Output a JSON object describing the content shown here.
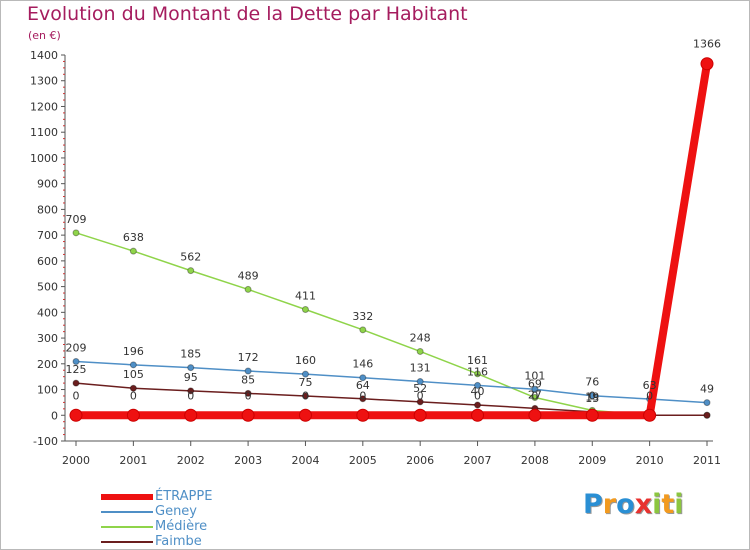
{
  "title": "Evolution du Montant de la Dette par Habitant",
  "unit_label": "(en €)",
  "logo": {
    "text": "Proxiti",
    "letters": [
      {
        "ch": "P",
        "color": "#2a8fd4"
      },
      {
        "ch": "r",
        "color": "#f29a1f"
      },
      {
        "ch": "o",
        "color": "#2a8fd4"
      },
      {
        "ch": "x",
        "color": "#e8322f"
      },
      {
        "ch": "i",
        "color": "#8cc63f"
      },
      {
        "ch": "t",
        "color": "#f29a1f"
      },
      {
        "ch": "i",
        "color": "#8cc63f"
      }
    ]
  },
  "chart_data": {
    "type": "line",
    "x": [
      "2000",
      "2001",
      "2002",
      "2003",
      "2004",
      "2005",
      "2006",
      "2007",
      "2008",
      "2009",
      "2010",
      "2011"
    ],
    "ylim": [
      -100,
      1400
    ],
    "yticks": [
      -100,
      0,
      100,
      200,
      300,
      400,
      500,
      600,
      700,
      800,
      900,
      1000,
      1100,
      1200,
      1300,
      1400
    ],
    "grid": false,
    "legend_position": "bottom-left",
    "series": [
      {
        "name": "ÉTRAPPE",
        "color": "#ee1111",
        "values": [
          0,
          0,
          0,
          0,
          0,
          0,
          0,
          0,
          0,
          0,
          0,
          1366
        ],
        "labels": [
          "0",
          "0",
          "0",
          "0",
          "0",
          "0",
          "0",
          "0",
          "0",
          "0",
          "0",
          "1366"
        ]
      },
      {
        "name": "Geney",
        "color": "#4f8fc6",
        "values": [
          209,
          196,
          185,
          172,
          160,
          146,
          131,
          116,
          101,
          76,
          63,
          49
        ],
        "labels": [
          "209",
          "196",
          "185",
          "172",
          "160",
          "146",
          "131",
          "116",
          "101",
          "76",
          "63",
          "49"
        ]
      },
      {
        "name": "Médière",
        "color": "#8fd44a",
        "values": [
          709,
          638,
          562,
          489,
          411,
          332,
          248,
          161,
          69,
          19,
          0,
          0
        ],
        "labels": [
          "709",
          "638",
          "562",
          "489",
          "411",
          "332",
          "248",
          "161",
          "69",
          "19",
          "",
          ""
        ]
      },
      {
        "name": "Faimbe",
        "color": "#6b1e1e",
        "values": [
          125,
          105,
          95,
          85,
          75,
          64,
          52,
          40,
          27,
          13,
          0,
          0
        ],
        "labels": [
          "125",
          "105",
          "95",
          "85",
          "75",
          "64",
          "52",
          "40",
          "27",
          "13",
          "",
          ""
        ]
      }
    ]
  }
}
